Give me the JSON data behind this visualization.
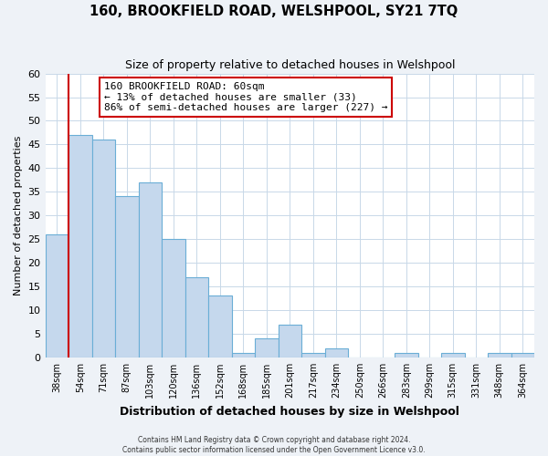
{
  "title": "160, BROOKFIELD ROAD, WELSHPOOL, SY21 7TQ",
  "subtitle": "Size of property relative to detached houses in Welshpool",
  "xlabel": "Distribution of detached houses by size in Welshpool",
  "ylabel": "Number of detached properties",
  "bin_labels": [
    "38sqm",
    "54sqm",
    "71sqm",
    "87sqm",
    "103sqm",
    "120sqm",
    "136sqm",
    "152sqm",
    "168sqm",
    "185sqm",
    "201sqm",
    "217sqm",
    "234sqm",
    "250sqm",
    "266sqm",
    "283sqm",
    "299sqm",
    "315sqm",
    "331sqm",
    "348sqm",
    "364sqm"
  ],
  "bar_values": [
    26,
    47,
    46,
    34,
    37,
    25,
    17,
    13,
    1,
    4,
    7,
    1,
    2,
    0,
    0,
    1,
    0,
    1,
    0,
    1,
    1
  ],
  "bar_color": "#c5d8ed",
  "bar_edge_color": "#6aaed6",
  "vline_x": 0.5,
  "vline_color": "#cc0000",
  "annotation_text": "160 BROOKFIELD ROAD: 60sqm\n← 13% of detached houses are smaller (33)\n86% of semi-detached houses are larger (227) →",
  "annotation_box_color": "#ffffff",
  "annotation_box_edge_color": "#cc0000",
  "ylim": [
    0,
    60
  ],
  "yticks": [
    0,
    5,
    10,
    15,
    20,
    25,
    30,
    35,
    40,
    45,
    50,
    55,
    60
  ],
  "footer_line1": "Contains HM Land Registry data © Crown copyright and database right 2024.",
  "footer_line2": "Contains public sector information licensed under the Open Government Licence v3.0.",
  "bg_color": "#eef2f7",
  "plot_bg_color": "#ffffff",
  "grid_color": "#c8d8e8"
}
